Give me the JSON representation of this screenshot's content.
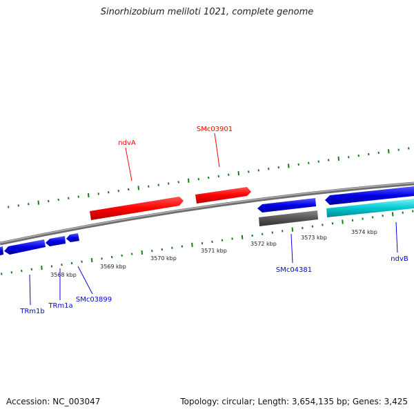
{
  "title": "Sinorhizobium meliloti 1021, complete genome",
  "footer": {
    "accession": "Accession: NC_003047",
    "summary": "Topology: circular; Length: 3,654,135 bp; Genes: 3,425"
  },
  "ruler_labels": [
    "3568 kbp",
    "3569 kbp",
    "3570 kbp",
    "3571 kbp",
    "3572 kbp",
    "3573 kbp",
    "3574 kbp"
  ],
  "genes": [
    {
      "name": "ndvA",
      "strand": "forward",
      "color": "#ff0000"
    },
    {
      "name": "SMc03901",
      "strand": "forward",
      "color": "#ff0000"
    },
    {
      "name": "SMc04381",
      "strand": "reverse",
      "color": "#0000e6"
    },
    {
      "name": "ndvB",
      "strand": "reverse",
      "color": "#0000e6"
    },
    {
      "name": "TRm1b",
      "strand": "reverse",
      "color": "#0000e6"
    },
    {
      "name": "TRm1a",
      "strand": "reverse",
      "color": "#0000e6"
    },
    {
      "name": "SMc03899",
      "strand": "reverse",
      "color": "#0000e6"
    }
  ],
  "colors": {
    "forward_gene": "#ff0000",
    "reverse_gene": "#0000e6",
    "cds_feature": "#00c8d2",
    "other_feature": "#555555",
    "backbone": "#8a8a8a",
    "ticks": "#1a7a1a"
  }
}
